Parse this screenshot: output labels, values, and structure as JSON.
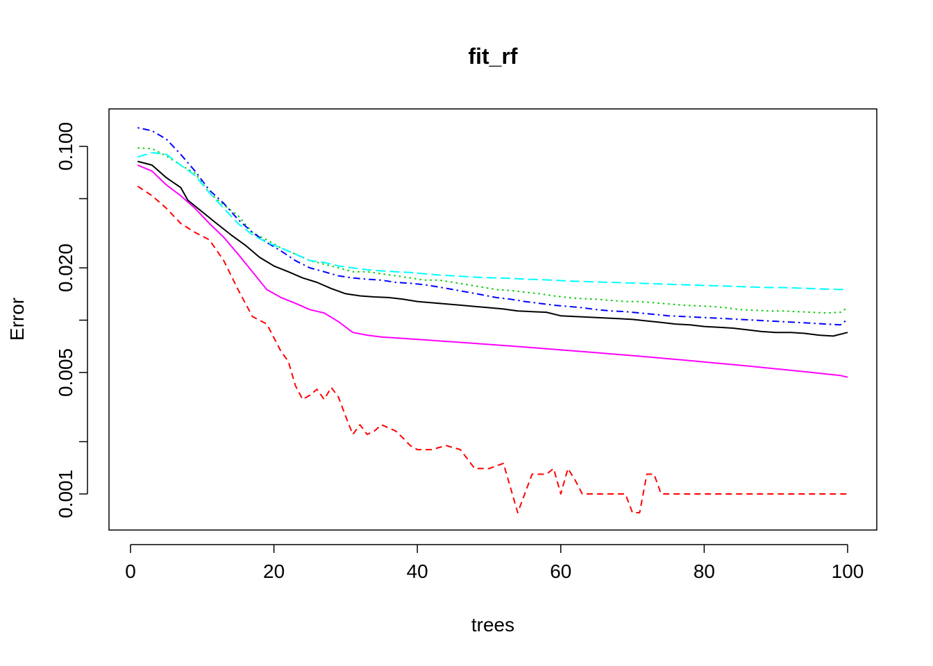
{
  "chart_data": {
    "type": "line",
    "title": "fit_rf",
    "xlabel": "trees",
    "ylabel": "Error",
    "y_scale": "log",
    "xlim": [
      1,
      100
    ],
    "ylim": [
      0.00075,
      0.13
    ],
    "x_ticks": [
      0,
      20,
      40,
      60,
      80,
      100
    ],
    "x_tick_labels": [
      "0",
      "20",
      "40",
      "60",
      "80",
      "100"
    ],
    "y_ticks": [
      0.001,
      0.002,
      0.005,
      0.01,
      0.02,
      0.05,
      0.1
    ],
    "y_tick_labels": [
      "0.001",
      "",
      "0.005",
      "",
      "0.020",
      "",
      "0.100"
    ],
    "grid": false,
    "legend": "none",
    "series": [
      {
        "color": "#000000",
        "dash": "solid",
        "points": [
          [
            1,
            0.082
          ],
          [
            3,
            0.078
          ],
          [
            5,
            0.066
          ],
          [
            7,
            0.058
          ],
          [
            8,
            0.049
          ],
          [
            10,
            0.042
          ],
          [
            12,
            0.036
          ],
          [
            14,
            0.031
          ],
          [
            16,
            0.027
          ],
          [
            18,
            0.023
          ],
          [
            20,
            0.0205
          ],
          [
            22,
            0.019
          ],
          [
            24,
            0.0175
          ],
          [
            26,
            0.0165
          ],
          [
            28,
            0.0152
          ],
          [
            30,
            0.0142
          ],
          [
            32,
            0.0138
          ],
          [
            34,
            0.0136
          ],
          [
            36,
            0.0135
          ],
          [
            38,
            0.0132
          ],
          [
            40,
            0.0128
          ],
          [
            42,
            0.0126
          ],
          [
            44,
            0.0124
          ],
          [
            46,
            0.0122
          ],
          [
            48,
            0.012
          ],
          [
            50,
            0.0118
          ],
          [
            52,
            0.0116
          ],
          [
            54,
            0.0113
          ],
          [
            56,
            0.0112
          ],
          [
            58,
            0.0111
          ],
          [
            60,
            0.0106
          ],
          [
            62,
            0.0105
          ],
          [
            64,
            0.0104
          ],
          [
            66,
            0.0103
          ],
          [
            68,
            0.0102
          ],
          [
            70,
            0.0101
          ],
          [
            72,
            0.0099
          ],
          [
            74,
            0.0097
          ],
          [
            76,
            0.0095
          ],
          [
            78,
            0.0094
          ],
          [
            80,
            0.0092
          ],
          [
            82,
            0.0091
          ],
          [
            84,
            0.009
          ],
          [
            86,
            0.0088
          ],
          [
            88,
            0.0086
          ],
          [
            90,
            0.0085
          ],
          [
            92,
            0.0085
          ],
          [
            94,
            0.0084
          ],
          [
            96,
            0.0082
          ],
          [
            98,
            0.0081
          ],
          [
            100,
            0.0085
          ]
        ]
      },
      {
        "color": "#ff0000",
        "dash": "dashed",
        "points": [
          [
            1,
            0.059
          ],
          [
            3,
            0.052
          ],
          [
            5,
            0.044
          ],
          [
            7,
            0.036
          ],
          [
            9,
            0.032
          ],
          [
            11,
            0.029
          ],
          [
            13,
            0.022
          ],
          [
            15,
            0.015
          ],
          [
            17,
            0.0105
          ],
          [
            19,
            0.0095
          ],
          [
            21,
            0.0066
          ],
          [
            22,
            0.0058
          ],
          [
            23,
            0.0042
          ],
          [
            24,
            0.0035
          ],
          [
            25,
            0.0037
          ],
          [
            26,
            0.004
          ],
          [
            27,
            0.0035
          ],
          [
            28,
            0.0041
          ],
          [
            29,
            0.0036
          ],
          [
            30,
            0.0028
          ],
          [
            31,
            0.0022
          ],
          [
            32,
            0.0025
          ],
          [
            33,
            0.0022
          ],
          [
            34,
            0.0023
          ],
          [
            35,
            0.0025
          ],
          [
            36,
            0.0024
          ],
          [
            37,
            0.0023
          ],
          [
            38,
            0.0021
          ],
          [
            39,
            0.0019
          ],
          [
            40,
            0.0018
          ],
          [
            42,
            0.0018
          ],
          [
            44,
            0.0019
          ],
          [
            46,
            0.0018
          ],
          [
            48,
            0.0014
          ],
          [
            50,
            0.0014
          ],
          [
            52,
            0.0015
          ],
          [
            54,
            0.00078
          ],
          [
            56,
            0.0013
          ],
          [
            58,
            0.0013
          ],
          [
            59,
            0.0014
          ],
          [
            60,
            0.001
          ],
          [
            61,
            0.0014
          ],
          [
            62,
            0.0012
          ],
          [
            63,
            0.001
          ],
          [
            66,
            0.001
          ],
          [
            69,
            0.001
          ],
          [
            70,
            0.00078
          ],
          [
            71,
            0.00078
          ],
          [
            72,
            0.0013
          ],
          [
            73,
            0.0013
          ],
          [
            74,
            0.001
          ],
          [
            100,
            0.001
          ]
        ]
      },
      {
        "color": "#00cd00",
        "dash": "dotted",
        "points": [
          [
            1,
            0.098
          ],
          [
            3,
            0.097
          ],
          [
            5,
            0.088
          ],
          [
            7,
            0.078
          ],
          [
            9,
            0.07
          ],
          [
            11,
            0.054
          ],
          [
            13,
            0.046
          ],
          [
            15,
            0.04
          ],
          [
            17,
            0.032
          ],
          [
            19,
            0.029
          ],
          [
            21,
            0.026
          ],
          [
            23,
            0.024
          ],
          [
            25,
            0.022
          ],
          [
            27,
            0.021
          ],
          [
            29,
            0.02
          ],
          [
            31,
            0.019
          ],
          [
            33,
            0.019
          ],
          [
            35,
            0.0185
          ],
          [
            37,
            0.018
          ],
          [
            39,
            0.0175
          ],
          [
            41,
            0.017
          ],
          [
            43,
            0.017
          ],
          [
            45,
            0.0165
          ],
          [
            47,
            0.016
          ],
          [
            49,
            0.0155
          ],
          [
            51,
            0.015
          ],
          [
            53,
            0.0148
          ],
          [
            55,
            0.0145
          ],
          [
            57,
            0.0142
          ],
          [
            59,
            0.0138
          ],
          [
            61,
            0.0135
          ],
          [
            63,
            0.0133
          ],
          [
            65,
            0.0132
          ],
          [
            67,
            0.013
          ],
          [
            69,
            0.0128
          ],
          [
            71,
            0.0128
          ],
          [
            73,
            0.0126
          ],
          [
            75,
            0.0124
          ],
          [
            77,
            0.0122
          ],
          [
            79,
            0.0121
          ],
          [
            81,
            0.012
          ],
          [
            83,
            0.0118
          ],
          [
            85,
            0.0115
          ],
          [
            87,
            0.0114
          ],
          [
            89,
            0.0113
          ],
          [
            91,
            0.0113
          ],
          [
            93,
            0.0112
          ],
          [
            95,
            0.0111
          ],
          [
            97,
            0.011
          ],
          [
            99,
            0.0111
          ],
          [
            100,
            0.0118
          ]
        ]
      },
      {
        "color": "#0000ff",
        "dash": "dotdash",
        "points": [
          [
            1,
            0.128
          ],
          [
            3,
            0.123
          ],
          [
            5,
            0.11
          ],
          [
            7,
            0.09
          ],
          [
            9,
            0.072
          ],
          [
            11,
            0.056
          ],
          [
            13,
            0.047
          ],
          [
            15,
            0.038
          ],
          [
            17,
            0.032
          ],
          [
            19,
            0.028
          ],
          [
            21,
            0.025
          ],
          [
            23,
            0.022
          ],
          [
            25,
            0.02
          ],
          [
            27,
            0.019
          ],
          [
            29,
            0.018
          ],
          [
            31,
            0.0175
          ],
          [
            33,
            0.0172
          ],
          [
            35,
            0.017
          ],
          [
            37,
            0.0165
          ],
          [
            39,
            0.0163
          ],
          [
            41,
            0.016
          ],
          [
            43,
            0.0155
          ],
          [
            45,
            0.015
          ],
          [
            47,
            0.0145
          ],
          [
            49,
            0.014
          ],
          [
            51,
            0.0135
          ],
          [
            53,
            0.0132
          ],
          [
            55,
            0.0128
          ],
          [
            57,
            0.0125
          ],
          [
            59,
            0.0122
          ],
          [
            61,
            0.012
          ],
          [
            63,
            0.0118
          ],
          [
            65,
            0.0115
          ],
          [
            67,
            0.0113
          ],
          [
            69,
            0.0112
          ],
          [
            71,
            0.011
          ],
          [
            73,
            0.0108
          ],
          [
            75,
            0.0106
          ],
          [
            77,
            0.0105
          ],
          [
            79,
            0.0104
          ],
          [
            81,
            0.0103
          ],
          [
            83,
            0.0102
          ],
          [
            85,
            0.0101
          ],
          [
            87,
            0.01
          ],
          [
            89,
            0.0099
          ],
          [
            91,
            0.0098
          ],
          [
            93,
            0.0097
          ],
          [
            95,
            0.0096
          ],
          [
            97,
            0.0095
          ],
          [
            99,
            0.0094
          ],
          [
            100,
            0.0101
          ]
        ]
      },
      {
        "color": "#00ffff",
        "dash": "longdash",
        "points": [
          [
            1,
            0.087
          ],
          [
            3,
            0.092
          ],
          [
            5,
            0.09
          ],
          [
            7,
            0.078
          ],
          [
            9,
            0.068
          ],
          [
            11,
            0.054
          ],
          [
            13,
            0.044
          ],
          [
            15,
            0.036
          ],
          [
            17,
            0.031
          ],
          [
            19,
            0.028
          ],
          [
            21,
            0.026
          ],
          [
            23,
            0.024
          ],
          [
            25,
            0.022
          ],
          [
            27,
            0.0215
          ],
          [
            29,
            0.0205
          ],
          [
            31,
            0.02
          ],
          [
            33,
            0.0195
          ],
          [
            35,
            0.0192
          ],
          [
            37,
            0.019
          ],
          [
            39,
            0.0188
          ],
          [
            41,
            0.0185
          ],
          [
            43,
            0.0182
          ],
          [
            45,
            0.018
          ],
          [
            47,
            0.0178
          ],
          [
            49,
            0.0176
          ],
          [
            51,
            0.0175
          ],
          [
            53,
            0.0174
          ],
          [
            55,
            0.0172
          ],
          [
            57,
            0.0171
          ],
          [
            59,
            0.017
          ],
          [
            61,
            0.0168
          ],
          [
            63,
            0.0167
          ],
          [
            65,
            0.0166
          ],
          [
            67,
            0.0165
          ],
          [
            69,
            0.0164
          ],
          [
            71,
            0.0163
          ],
          [
            73,
            0.0162
          ],
          [
            75,
            0.0161
          ],
          [
            77,
            0.016
          ],
          [
            79,
            0.0159
          ],
          [
            81,
            0.0158
          ],
          [
            83,
            0.0157
          ],
          [
            85,
            0.0156
          ],
          [
            87,
            0.0155
          ],
          [
            89,
            0.0154
          ],
          [
            91,
            0.0154
          ],
          [
            93,
            0.0153
          ],
          [
            95,
            0.0152
          ],
          [
            97,
            0.0151
          ],
          [
            99,
            0.015
          ],
          [
            100,
            0.0151
          ]
        ]
      },
      {
        "color": "#ff00ff",
        "dash": "solid",
        "points": [
          [
            1,
            0.078
          ],
          [
            3,
            0.072
          ],
          [
            5,
            0.06
          ],
          [
            7,
            0.052
          ],
          [
            9,
            0.044
          ],
          [
            11,
            0.036
          ],
          [
            13,
            0.03
          ],
          [
            15,
            0.024
          ],
          [
            17,
            0.019
          ],
          [
            19,
            0.015
          ],
          [
            21,
            0.0135
          ],
          [
            23,
            0.0125
          ],
          [
            25,
            0.0115
          ],
          [
            27,
            0.011
          ],
          [
            29,
            0.0098
          ],
          [
            31,
            0.0085
          ],
          [
            33,
            0.0082
          ],
          [
            35,
            0.008
          ],
          [
            37,
            0.0079
          ],
          [
            39,
            0.0078
          ],
          [
            41,
            0.0077
          ],
          [
            43,
            0.0076
          ],
          [
            45,
            0.0075
          ],
          [
            47,
            0.0074
          ],
          [
            49,
            0.0073
          ],
          [
            51,
            0.0072
          ],
          [
            53,
            0.0071
          ],
          [
            55,
            0.007
          ],
          [
            57,
            0.0069
          ],
          [
            59,
            0.0068
          ],
          [
            61,
            0.0067
          ],
          [
            63,
            0.0066
          ],
          [
            65,
            0.0065
          ],
          [
            67,
            0.0064
          ],
          [
            69,
            0.0063
          ],
          [
            71,
            0.0062
          ],
          [
            73,
            0.0061
          ],
          [
            75,
            0.006
          ],
          [
            77,
            0.0059
          ],
          [
            79,
            0.0058
          ],
          [
            81,
            0.0057
          ],
          [
            83,
            0.0056
          ],
          [
            85,
            0.0055
          ],
          [
            87,
            0.0054
          ],
          [
            89,
            0.0053
          ],
          [
            91,
            0.0052
          ],
          [
            93,
            0.0051
          ],
          [
            95,
            0.005
          ],
          [
            97,
            0.0049
          ],
          [
            99,
            0.0048
          ],
          [
            100,
            0.0047
          ]
        ]
      }
    ]
  }
}
